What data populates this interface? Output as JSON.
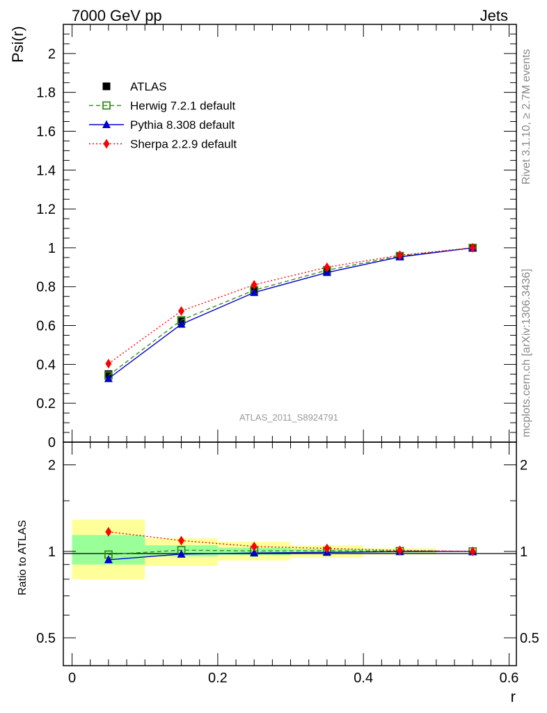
{
  "header": {
    "left": "7000 GeV pp",
    "right": "Jets"
  },
  "side_labels": {
    "rivet": "Rivet 3.1.10, ≥ 2.7M events",
    "source": "mcplots.cern.ch [arXiv:1306.3436]"
  },
  "analysis_label": "ATLAS_2011_S8924791",
  "colors": {
    "atlas": "#000000",
    "herwig": "#3a8a1f",
    "pythia": "#0000cc",
    "sherpa": "#ff0000",
    "band_inner": "#99ff99",
    "band_outer": "#ffff99"
  },
  "chart_data": [
    {
      "type": "line",
      "ylabel": "Psi(r)",
      "xlim": [
        -0.012,
        0.61
      ],
      "ylim": [
        0,
        2.15
      ],
      "y_ticks": [
        "0",
        "0.2",
        "0.4",
        "0.6",
        "0.8",
        "1",
        "1.2",
        "1.4",
        "1.6",
        "1.8",
        "2"
      ],
      "x": [
        0.05,
        0.15,
        0.25,
        0.35,
        0.45,
        0.55
      ],
      "legend_position": "top-left",
      "series": [
        {
          "name": "ATLAS",
          "style": "data",
          "marker": "square",
          "values": [
            0.35,
            0.622,
            0.78,
            0.88,
            0.955,
            1.0
          ]
        },
        {
          "name": "Herwig 7.2.1 default",
          "style": "dashed",
          "marker": "open-square",
          "values": [
            0.343,
            0.628,
            0.782,
            0.885,
            0.958,
            1.0
          ]
        },
        {
          "name": "Pythia 8.308 default",
          "style": "solid",
          "marker": "triangle",
          "values": [
            0.327,
            0.607,
            0.77,
            0.873,
            0.953,
            1.0
          ]
        },
        {
          "name": "Sherpa 2.2.9 default",
          "style": "dotted",
          "marker": "diamond",
          "values": [
            0.404,
            0.675,
            0.81,
            0.9,
            0.962,
            1.0
          ]
        }
      ]
    },
    {
      "type": "line",
      "xlabel": "r",
      "ylabel": "Ratio to ATLAS",
      "xlim": [
        -0.012,
        0.61
      ],
      "ylim": [
        0.4,
        2.4
      ],
      "y_scale": "log",
      "y_ticks": [
        "0.5",
        "1",
        "2"
      ],
      "x_ticks": [
        "0",
        "0.2",
        "0.4",
        "0.6"
      ],
      "x": [
        0.05,
        0.15,
        0.25,
        0.35,
        0.45,
        0.55
      ],
      "bands": [
        {
          "x_range": [
            0.0,
            0.1
          ],
          "inner": [
            0.9,
            1.14
          ],
          "outer": [
            0.8,
            1.29
          ]
        },
        {
          "x_range": [
            0.1,
            0.2
          ],
          "inner": [
            0.96,
            1.05
          ],
          "outer": [
            0.89,
            1.11
          ]
        },
        {
          "x_range": [
            0.2,
            0.3
          ],
          "inner": [
            0.97,
            1.03
          ],
          "outer": [
            0.93,
            1.08
          ]
        },
        {
          "x_range": [
            0.3,
            0.4
          ],
          "inner": [
            0.98,
            1.02
          ],
          "outer": [
            0.95,
            1.05
          ]
        },
        {
          "x_range": [
            0.4,
            0.5
          ],
          "inner": [
            0.99,
            1.01
          ],
          "outer": [
            0.975,
            1.025
          ]
        },
        {
          "x_range": [
            0.5,
            0.6
          ],
          "inner": [
            1.0,
            1.0
          ],
          "outer": [
            1.0,
            1.0
          ]
        }
      ],
      "series": [
        {
          "name": "Herwig 7.2.1 default",
          "style": "dashed",
          "marker": "open-square",
          "values": [
            0.975,
            1.01,
            1.003,
            1.004,
            1.003,
            1.0
          ]
        },
        {
          "name": "Pythia 8.308 default",
          "style": "solid",
          "marker": "triangle",
          "values": [
            0.935,
            0.978,
            0.987,
            0.992,
            0.998,
            1.0
          ]
        },
        {
          "name": "Sherpa 2.2.9 default",
          "style": "dotted",
          "marker": "diamond",
          "values": [
            1.17,
            1.09,
            1.04,
            1.024,
            1.008,
            1.0
          ]
        }
      ]
    }
  ]
}
